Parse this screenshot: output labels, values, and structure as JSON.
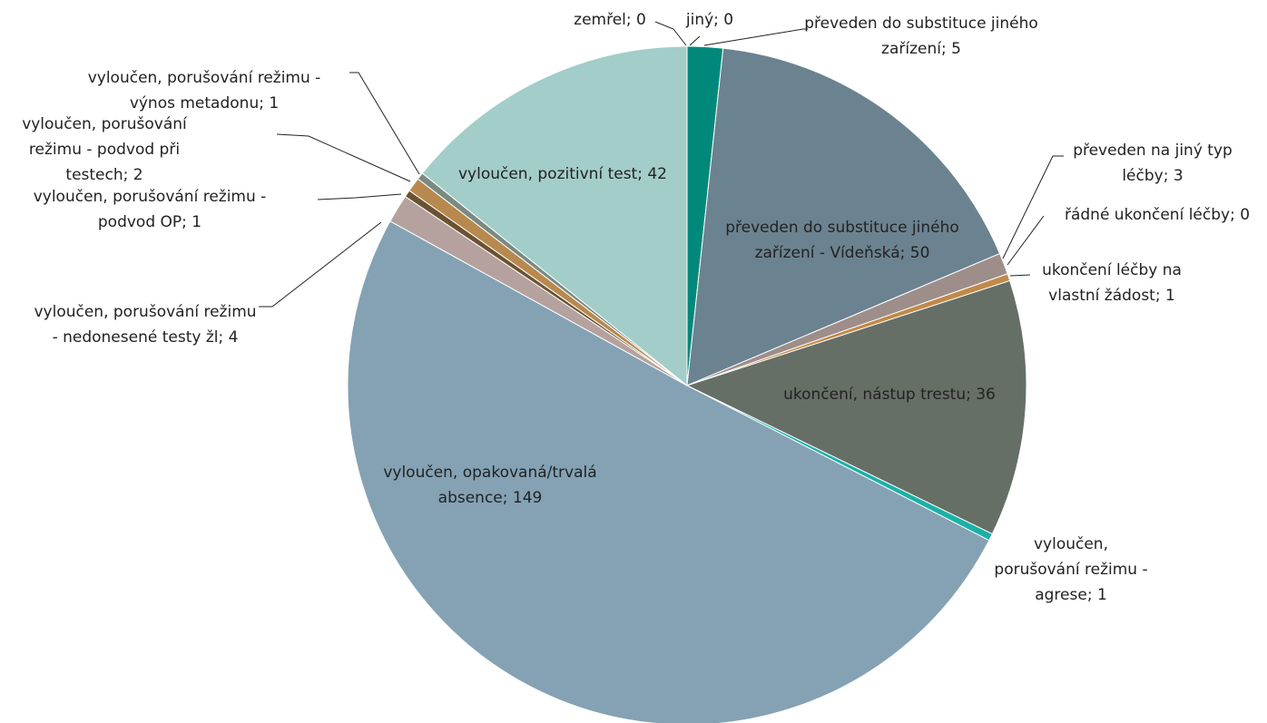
{
  "chart_data": {
    "type": "pie",
    "value_labels": [
      "jiný; 0",
      "převeden do substituce jiného zařízení; 5",
      "převeden do substituce jiného zařízení - Vídeňská; 50",
      "převeden na jiný typ léčby; 3",
      "řádné ukončení léčby; 0",
      "ukončení léčby na vlastní žádost; 1",
      "ukončení, nástup trestu; 36",
      "vyloučen, porušování režimu - agrese; 1",
      "vyloučen, opakovaná/trvalá absence; 149",
      "vyloučen, porušování režimu - nedonesené testy žl; 4",
      "vyloučen, porušování režimu - podvod OP; 1",
      "vyloučen, porušování režimu - podvod při testech; 2",
      "vyloučen, porušování režimu - výnos metadonu; 1",
      "vyloučen, pozitivní test; 42",
      "zemřel; 0"
    ],
    "values": [
      0,
      5,
      50,
      3,
      0,
      1,
      36,
      1,
      149,
      4,
      1,
      2,
      1,
      42,
      0
    ],
    "colors": [
      "#4e7a8c",
      "#00897b",
      "#6b8290",
      "#9e8e8a",
      "#7a7a7a",
      "#c08a4a",
      "#666f66",
      "#1ab0a8",
      "#84a2b4",
      "#b5a29f",
      "#6b5230",
      "#b8894f",
      "#7a8a82",
      "#a3cdc8",
      "#888888"
    ]
  }
}
